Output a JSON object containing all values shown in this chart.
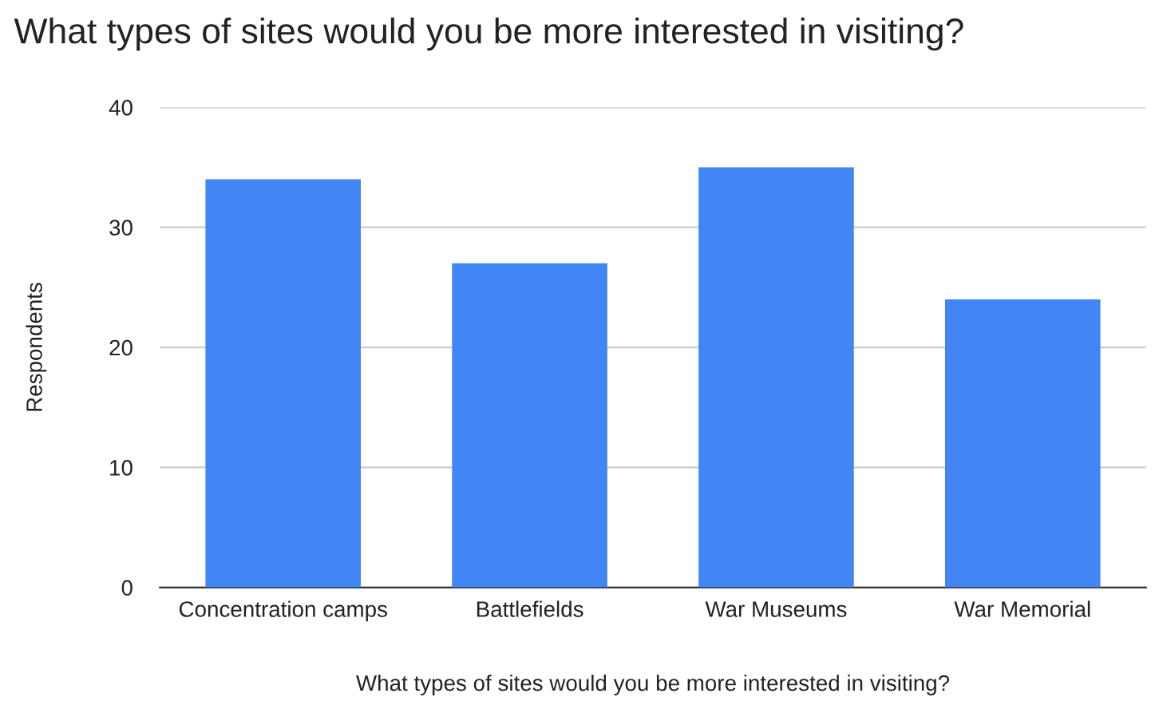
{
  "chart_data": {
    "type": "bar",
    "title": "What types of sites would you be more interested in visiting?",
    "xlabel": "What types of sites would you be more interested in visiting?",
    "ylabel": "Respondents",
    "categories": [
      "Concentration camps",
      "Battlefields",
      "War Museums",
      "War Memorial"
    ],
    "values": [
      34,
      27,
      35,
      24
    ],
    "color": "#4285f4",
    "ylim": [
      0,
      40
    ],
    "yticks": [
      0,
      10,
      20,
      30,
      40
    ],
    "grid": "y"
  }
}
